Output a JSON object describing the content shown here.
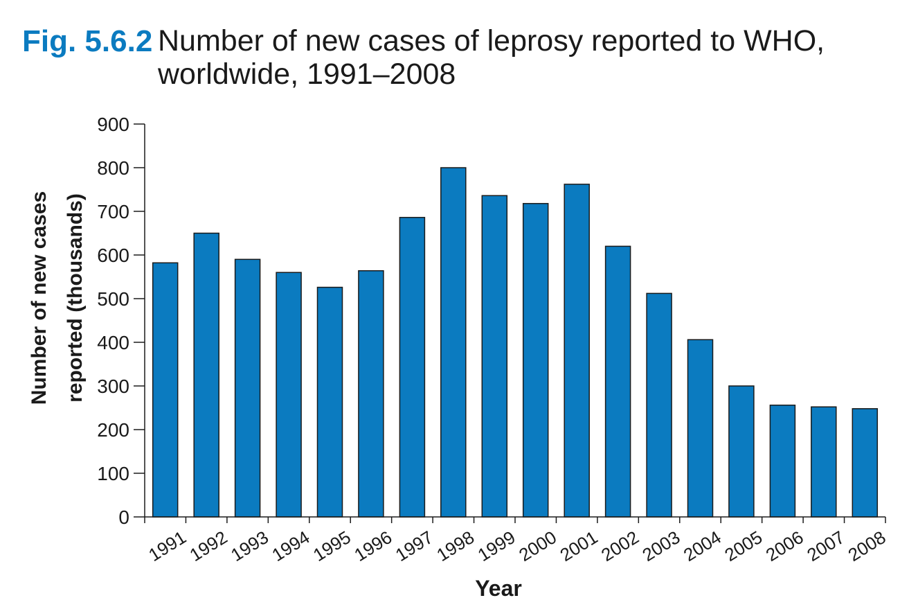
{
  "figure": {
    "label": "Fig. 5.6.2",
    "title_line1": "Number of new cases of leprosy reported to WHO,",
    "title_line2": "worldwide, 1991–2008"
  },
  "colors": {
    "bar_fill": "#0B7BC0",
    "bar_stroke": "#1a1a1a",
    "axis": "#1a1a1a",
    "label_accent": "#0B7BC0"
  },
  "chart_data": {
    "type": "bar",
    "title": "Number of new cases of leprosy reported to WHO, worldwide, 1991–2008",
    "xlabel": "Year",
    "ylabel_line1": "Number of new cases",
    "ylabel_line2": "reported (thousands)",
    "ylim": [
      0,
      900
    ],
    "yticks": [
      0,
      100,
      200,
      300,
      400,
      500,
      600,
      700,
      800,
      900
    ],
    "grid": false,
    "categories": [
      "1991",
      "1992",
      "1993",
      "1994",
      "1995",
      "1996",
      "1997",
      "1998",
      "1999",
      "2000",
      "2001",
      "2002",
      "2003",
      "2004",
      "2005",
      "2006",
      "2007",
      "2008"
    ],
    "values": [
      582,
      650,
      590,
      560,
      526,
      564,
      686,
      800,
      736,
      718,
      762,
      620,
      512,
      406,
      300,
      256,
      252,
      248
    ]
  }
}
